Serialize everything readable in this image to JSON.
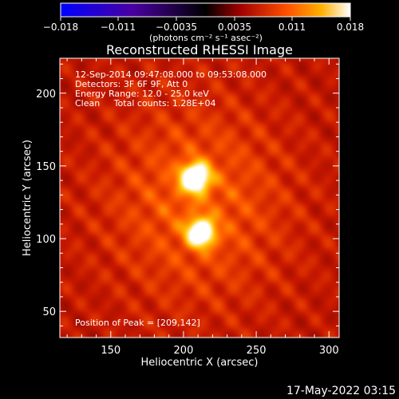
{
  "chart_data": {
    "type": "heatmap",
    "title": "Reconstructed RHESSI Image",
    "xlabel": "Heliocentric X (arcsec)",
    "ylabel": "Heliocentric Y (arcsec)",
    "xlim": [
      115,
      307
    ],
    "ylim": [
      32,
      224
    ],
    "xticks": [
      "150",
      "200",
      "250",
      "300"
    ],
    "yticks": [
      "50",
      "100",
      "150",
      "200"
    ],
    "colorbar": {
      "ticks": [
        "−0.018",
        "−0.011",
        "−0.0035",
        "0.0035",
        "0.011",
        "0.018"
      ],
      "range": [
        -0.018,
        0.018
      ],
      "units_label": "(photons cm⁻² s⁻¹ asec⁻²)"
    },
    "info_lines": [
      "12-Sep-2014 09:47:08.000 to 09:53:08.000",
      "Detectors: 3F 6F 9F, Att 0",
      "Energy Range: 12.0 - 25.0 keV",
      "Clean     Total counts: 1.28E+04"
    ],
    "peak_label": "Position of Peak = [209,142]",
    "sources": [
      {
        "x": 208,
        "y": 142,
        "sigma": 6.5,
        "amp": 0.018
      },
      {
        "x": 212,
        "y": 104,
        "sigma": 6.5,
        "amp": 0.0155
      }
    ],
    "colors": {
      "background": "#000000",
      "text": "#ffffff"
    }
  },
  "footer": {
    "date": "17-May-2022 03:15"
  }
}
